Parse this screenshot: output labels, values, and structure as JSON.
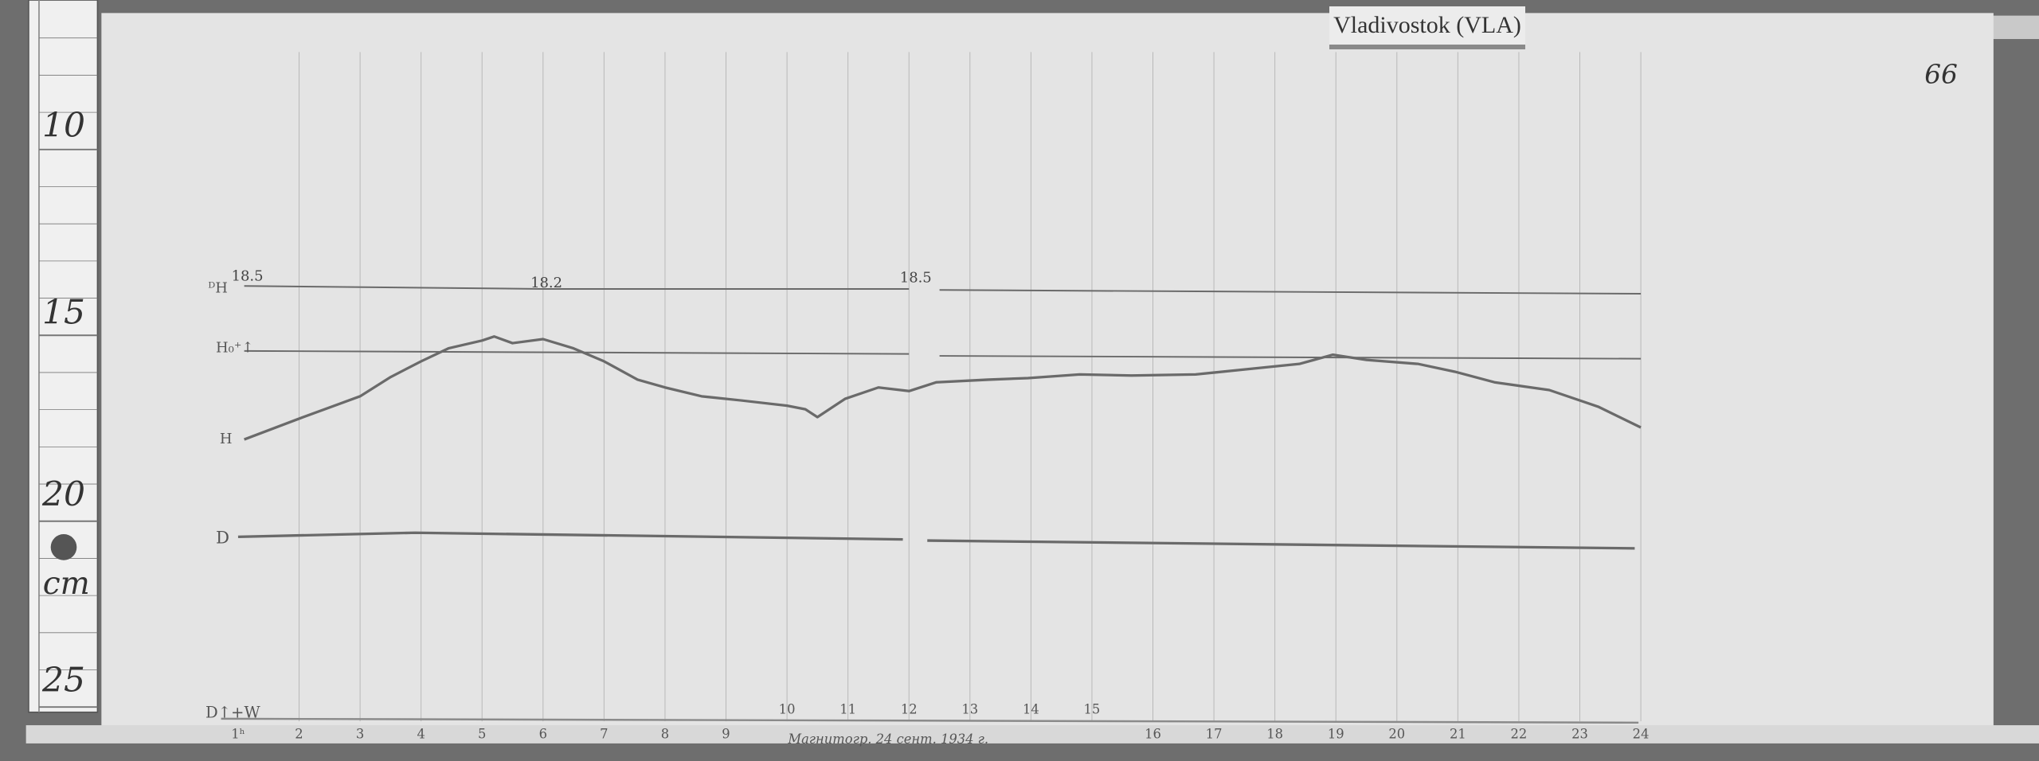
{
  "station_label": "Vladivostok (VLA)",
  "page_number": "66",
  "ruler": {
    "unit": "cm",
    "ticks": [
      "10",
      "15",
      "20",
      "25"
    ]
  },
  "trace_labels": {
    "dh": "ᴰH",
    "h0": "H₀⁺↑",
    "h": "H",
    "d": "D",
    "d_bottom": "D↑+W"
  },
  "scale_values": [
    "18.5",
    "18.2",
    "18.5"
  ],
  "footnote": "Магнитогр. 24 сент. 1934 г.",
  "colors": {
    "paper": "#e4e4e4",
    "trace": "#6a6a6a",
    "grid": "#b8b8b8",
    "background": "#707070"
  },
  "chart_data": {
    "type": "line",
    "title": "",
    "xlabel": "",
    "ylabel": "",
    "x_unit": "hour",
    "y_unit": "cm",
    "xlim": [
      1,
      24
    ],
    "ylim": [
      10,
      25
    ],
    "grid": true,
    "x_tick_labels": [
      "1ʰ",
      "2",
      "3",
      "4",
      "5",
      "6",
      "7",
      "8",
      "9",
      "10",
      "11",
      "12",
      "13",
      "14",
      "15",
      "16",
      "17",
      "18",
      "19",
      "20",
      "21",
      "22",
      "23",
      "24"
    ],
    "series": [
      {
        "name": "H",
        "x": [
          1.1,
          2,
          3,
          3.5,
          4,
          4.45,
          5,
          5.2,
          5.5,
          6,
          6.5,
          7,
          7.55,
          8,
          8.6,
          9.25,
          10,
          10.3,
          10.5,
          10.95,
          11.5,
          12,
          12.45,
          13.3,
          13.95,
          14.8,
          15.65,
          16.7,
          17.55,
          18.4,
          18.95,
          19.5,
          20.35,
          20.95,
          21.6,
          22.5,
          23.3,
          24
        ],
        "y": [
          18.5,
          17.94,
          17.34,
          16.82,
          16.4,
          16.05,
          15.84,
          15.73,
          15.91,
          15.8,
          16.05,
          16.4,
          16.89,
          17.1,
          17.34,
          17.45,
          17.59,
          17.69,
          17.9,
          17.41,
          17.1,
          17.2,
          16.96,
          16.89,
          16.85,
          16.75,
          16.78,
          16.75,
          16.61,
          16.47,
          16.22,
          16.36,
          16.47,
          16.68,
          16.96,
          17.17,
          17.62,
          18.18
        ]
      },
      {
        "name": "D",
        "x": [
          1.0,
          3.9,
          11.9,
          12.3,
          23.9
        ],
        "y": [
          21.12,
          21.01,
          21.19,
          21.22,
          21.43
        ]
      },
      {
        "name": "H₀",
        "x": [
          1.1,
          12,
          12.5,
          24
        ],
        "y": [
          16.12,
          16.2,
          16.25,
          16.33
        ]
      },
      {
        "name": "ᴰH",
        "x": [
          1.1,
          6,
          12,
          12.5,
          24
        ],
        "y": [
          14.37,
          14.45,
          14.45,
          14.48,
          14.58
        ]
      }
    ]
  }
}
